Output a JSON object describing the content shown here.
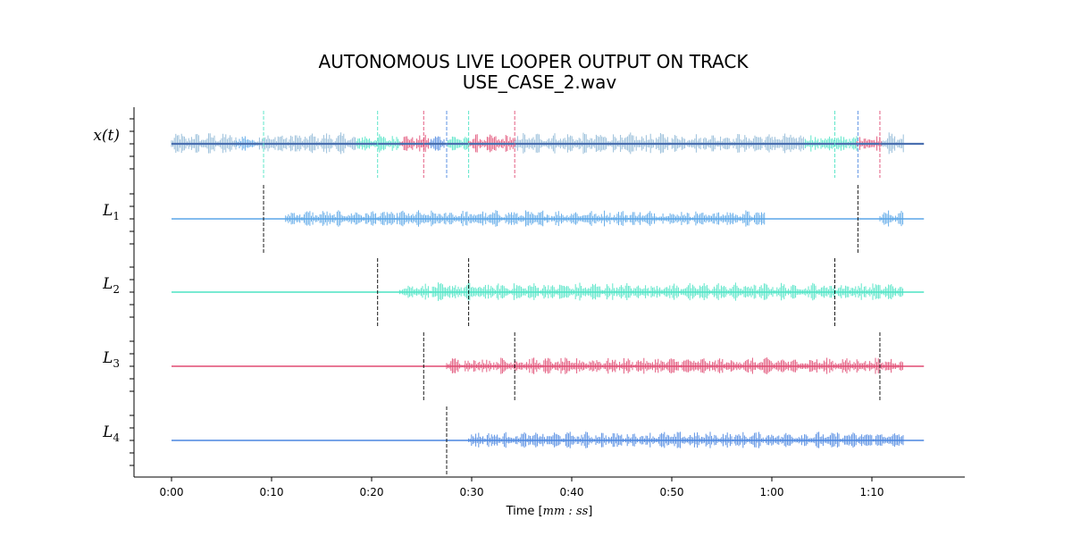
{
  "chart_data": {
    "type": "line",
    "title_line1": "AUTONOMOUS LIVE LOOPER OUTPUT ON TRACK",
    "title_line2": "USE_CASE_2.wav",
    "xlabel_prefix": "Time [",
    "xlabel_math": "mm : ss",
    "xlabel_suffix": "]",
    "x_range_seconds": [
      0,
      75.5
    ],
    "x_ticks": [
      {
        "value": 0,
        "label": "0:00"
      },
      {
        "value": 10,
        "label": "0:10"
      },
      {
        "value": 20,
        "label": "0:20"
      },
      {
        "value": 30,
        "label": "0:30"
      },
      {
        "value": 40,
        "label": "0:40"
      },
      {
        "value": 50,
        "label": "0:50"
      },
      {
        "value": 60,
        "label": "1:00"
      },
      {
        "value": 70,
        "label": "1:10"
      }
    ],
    "colors": {
      "input": "#8fb8d6",
      "input_base": "#4a6fb0",
      "L1": "#5aa6e8",
      "L2": "#4de3c4",
      "L3": "#e04a72",
      "L4": "#4a86e0",
      "boundary": "#000000"
    },
    "tracks": [
      {
        "id": "input",
        "label_main": "x(t)",
        "label_sub": "",
        "segments": [
          {
            "start": 0,
            "end": 6.5,
            "color": "input"
          },
          {
            "start": 6.5,
            "end": 8.5,
            "color": "L1"
          },
          {
            "start": 8.5,
            "end": 18.5,
            "color": "input"
          },
          {
            "start": 18.5,
            "end": 22.8,
            "color": "L2"
          },
          {
            "start": 22.8,
            "end": 25.8,
            "color": "L3"
          },
          {
            "start": 25.8,
            "end": 27.5,
            "color": "L4"
          },
          {
            "start": 27.5,
            "end": 29.7,
            "color": "L2"
          },
          {
            "start": 29.7,
            "end": 34.3,
            "color": "L3"
          },
          {
            "start": 34.3,
            "end": 63.2,
            "color": "input"
          },
          {
            "start": 63.2,
            "end": 68.5,
            "color": "L2"
          },
          {
            "start": 68.5,
            "end": 71.0,
            "color": "L3"
          },
          {
            "start": 71.0,
            "end": 73.2,
            "color": "input"
          }
        ],
        "boundaries": [
          {
            "t": 9.2,
            "color": "L2"
          },
          {
            "t": 20.6,
            "color": "L2"
          },
          {
            "t": 25.2,
            "color": "L3"
          },
          {
            "t": 27.5,
            "color": "L4"
          },
          {
            "t": 29.7,
            "color": "L2"
          },
          {
            "t": 34.3,
            "color": "L3"
          },
          {
            "t": 66.3,
            "color": "L2"
          },
          {
            "t": 68.6,
            "color": "L4"
          },
          {
            "t": 70.8,
            "color": "L3"
          }
        ]
      },
      {
        "id": "L1",
        "label_main": "L",
        "label_sub": "1",
        "active": [
          {
            "start": 11.4,
            "end": 59.3
          },
          {
            "start": 70.8,
            "end": 73.2
          }
        ],
        "boundaries": [
          9.2,
          68.6
        ]
      },
      {
        "id": "L2",
        "label_main": "L",
        "label_sub": "2",
        "active": [
          {
            "start": 22.8,
            "end": 73.2
          }
        ],
        "boundaries": [
          20.6,
          29.7,
          66.3
        ]
      },
      {
        "id": "L3",
        "label_main": "L",
        "label_sub": "3",
        "active": [
          {
            "start": 27.5,
            "end": 73.2
          }
        ],
        "boundaries": [
          25.2,
          34.3,
          70.8
        ]
      },
      {
        "id": "L4",
        "label_main": "L",
        "label_sub": "4",
        "active": [
          {
            "start": 29.7,
            "end": 73.2
          }
        ],
        "boundaries": [
          27.5
        ]
      }
    ]
  }
}
